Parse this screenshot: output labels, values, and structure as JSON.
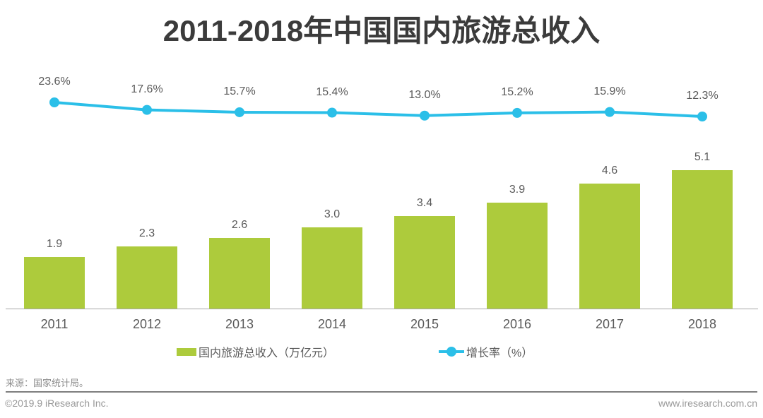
{
  "page": {
    "title": "2011-2018年中国国内旅游总收入"
  },
  "chart_data": {
    "type": "bar",
    "title": "2011-2018年中国国内旅游总收入",
    "categories": [
      "2011",
      "2012",
      "2013",
      "2014",
      "2015",
      "2016",
      "2017",
      "2018"
    ],
    "series": [
      {
        "name": "国内旅游总收入（万亿元）",
        "type": "bar",
        "values": [
          1.9,
          2.3,
          2.6,
          3.0,
          3.4,
          3.9,
          4.6,
          5.1
        ],
        "labels": [
          "1.9",
          "2.3",
          "2.6",
          "3.0",
          "3.4",
          "3.9",
          "4.6",
          "5.1"
        ],
        "color": "#ADCB3C"
      },
      {
        "name": "增长率（%）",
        "type": "line",
        "values": [
          23.6,
          17.6,
          15.7,
          15.4,
          13.0,
          15.2,
          15.9,
          12.3
        ],
        "labels": [
          "23.6%",
          "17.6%",
          "15.7%",
          "15.4%",
          "13.0%",
          "15.2%",
          "15.9%",
          "12.3%"
        ],
        "color": "#2BBFE8"
      }
    ],
    "xlabel": "",
    "ylabel": "",
    "grid": false,
    "legend_position": "bottom",
    "value_axis_visible": false
  },
  "legend": {
    "bar_label": "国内旅游总收入（万亿元）",
    "line_label": "增长率（%）"
  },
  "footer": {
    "source": "来源：国家统计局。",
    "copyright": "©2019.9 iResearch Inc.",
    "website": "www.iresearch.com.cn"
  },
  "colors": {
    "bar": "#ADCB3C",
    "line": "#2BBFE8",
    "title_text": "#3B3B3B",
    "label_text": "#595959",
    "axis_line": "#A6A6A6",
    "footer_text": "#8C8C8C",
    "divider": "#7F7F7F",
    "background": "#FFFFFF"
  }
}
